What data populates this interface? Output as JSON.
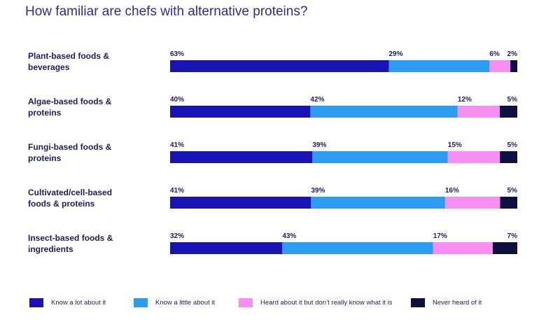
{
  "chart_data": {
    "type": "bar",
    "orientation": "horizontal",
    "stacked": true,
    "title": "How familiar are chefs with alternative proteins?",
    "categories": [
      [
        "Plant-based foods &",
        "beverages"
      ],
      [
        "Algae-based foods &",
        "proteins"
      ],
      [
        "Fungi-based foods &",
        "proteins"
      ],
      [
        "Cultivated/cell-based",
        "foods & proteins"
      ],
      [
        "Insect-based foods &",
        "ingredients"
      ]
    ],
    "series": [
      {
        "name": "Know a lot about it",
        "color": "#1a14b4",
        "values": [
          63,
          40,
          41,
          41,
          32
        ]
      },
      {
        "name": "Know a little about it",
        "color": "#2c9cf0",
        "values": [
          29,
          42,
          39,
          39,
          43
        ]
      },
      {
        "name": "Heard about it but don’t really know what it is",
        "color": "#f78ef2",
        "values": [
          6,
          12,
          15,
          16,
          17
        ]
      },
      {
        "name": "Never heard of it",
        "color": "#0c1140",
        "values": [
          2,
          5,
          5,
          5,
          7
        ]
      }
    ],
    "value_suffix": "%",
    "legend_position": "bottom"
  }
}
